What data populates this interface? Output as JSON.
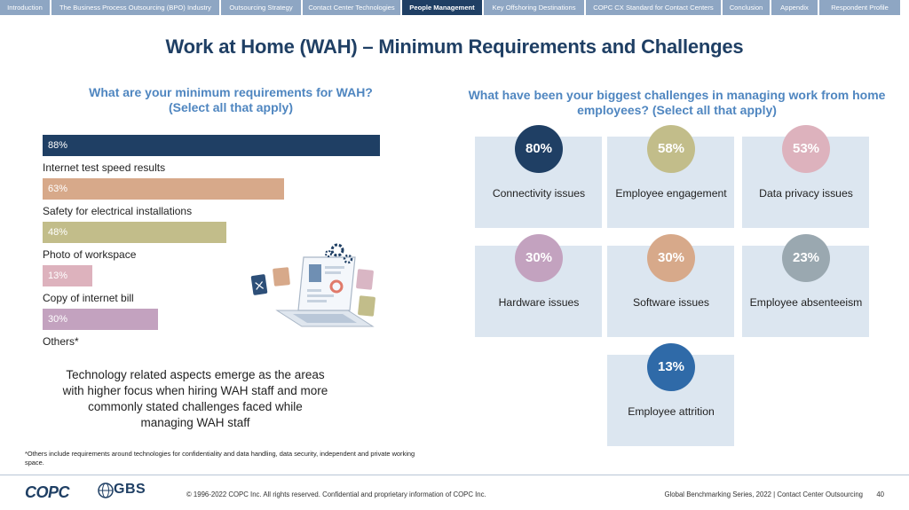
{
  "nav": {
    "tabs": [
      {
        "label": "Introduction",
        "active": false
      },
      {
        "label": "The Business Process Outsourcing (BPO) Industry",
        "active": false
      },
      {
        "label": "Outsourcing Strategy",
        "active": false
      },
      {
        "label": "Contact Center Technologies",
        "active": false
      },
      {
        "label": "People Management",
        "active": true
      },
      {
        "label": "Key Offshoring Destinations",
        "active": false
      },
      {
        "label": "COPC CX Standard for Contact Centers",
        "active": false
      },
      {
        "label": "Conclusion",
        "active": false
      },
      {
        "label": "Appendix",
        "active": false
      },
      {
        "label": "Respondent Profile",
        "active": false
      }
    ]
  },
  "title": "Work at Home (WAH) – Minimum Requirements and Challenges",
  "left_question": "What are your minimum requirements for WAH?\n(Select all that apply)",
  "right_question": "What have been your biggest challenges in managing work from home employees? (Select all that apply)",
  "chart_data": {
    "type": "bar",
    "orientation": "horizontal",
    "categories": [
      "Internet test speed results",
      "Safety for electrical installations",
      "Photo of workspace",
      "Copy of internet bill",
      "Others*"
    ],
    "values": [
      88,
      63,
      48,
      13,
      30
    ],
    "value_labels": [
      "88%",
      "63%",
      "48%",
      "13%",
      "30%"
    ],
    "colors": [
      "#1f3f64",
      "#d7a98a",
      "#c2bd8a",
      "#ddb2bd",
      "#c3a2bf"
    ],
    "xlim": [
      0,
      100
    ]
  },
  "challenges": [
    {
      "value": "80%",
      "label": "Connectivity issues",
      "color": "#1f3f64"
    },
    {
      "value": "58%",
      "label": "Employee engagement",
      "color": "#c2bd8a"
    },
    {
      "value": "53%",
      "label": "Data privacy issues",
      "color": "#ddb2bd"
    },
    {
      "value": "30%",
      "label": "Hardware issues",
      "color": "#c3a2bf"
    },
    {
      "value": "30%",
      "label": "Software issues",
      "color": "#d7a98a"
    },
    {
      "value": "23%",
      "label": "Employee absenteeism",
      "color": "#9aa8b0"
    },
    {
      "value": "13%",
      "label": "Employee attrition",
      "color": "#2f6aa8"
    }
  ],
  "summary": "Technology related aspects emerge as the areas with higher focus when hiring WAH staff and more commonly stated challenges faced while managing WAH staff",
  "footnote": "*Others include requirements around  technologies for confidentiality and data handling, data security, independent and private working space.",
  "footer": {
    "logo_copc": "COPC",
    "logo_gbs": "GBS",
    "copyright": "© 1996-2022 COPC Inc. All rights reserved. Confidential and proprietary information of COPC Inc.",
    "series": "Global Benchmarking Series, 2022  |  Contact Center Outsourcing",
    "page": "40"
  },
  "icons": {
    "illustration": "laptop-with-gears-and-documents-icon"
  }
}
